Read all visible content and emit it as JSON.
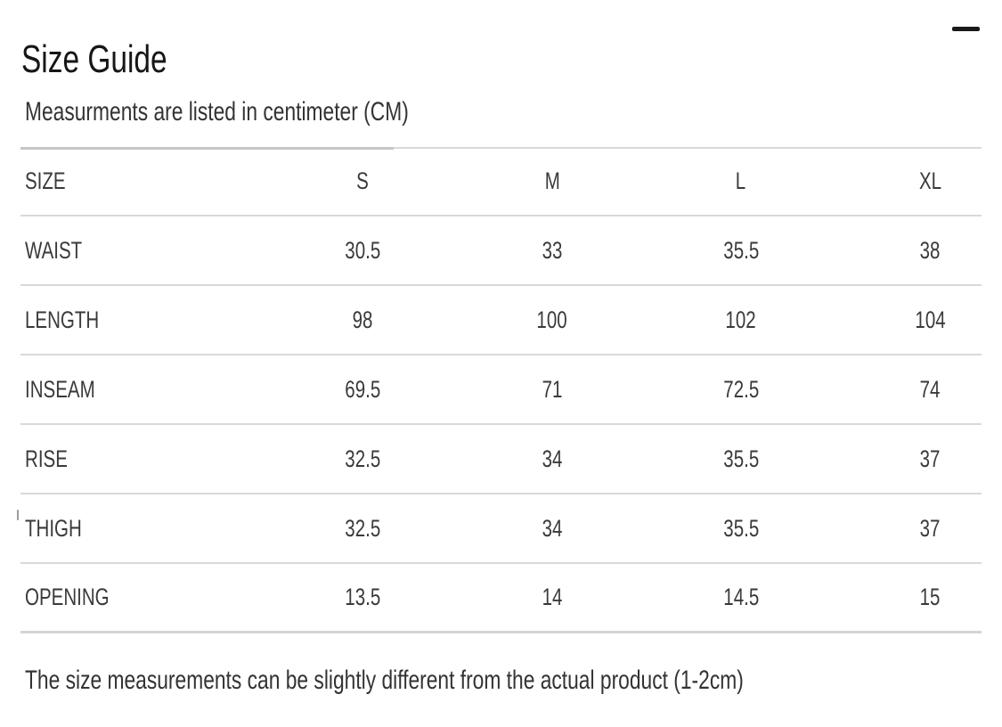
{
  "modal": {
    "title": "Size Guide"
  },
  "subtitle": "Measurments are listed in centimeter (CM)",
  "table": {
    "columns": [
      "SIZE",
      "S",
      "M",
      "L",
      "XL"
    ],
    "rows": [
      {
        "label": "WAIST",
        "values": [
          "30.5",
          "33",
          "35.5",
          "38"
        ]
      },
      {
        "label": "LENGTH",
        "values": [
          "98",
          "100",
          "102",
          "104"
        ]
      },
      {
        "label": "INSEAM",
        "values": [
          "69.5",
          "71",
          "72.5",
          "74"
        ]
      },
      {
        "label": "RISE",
        "values": [
          "32.5",
          "34",
          "35.5",
          "37"
        ]
      },
      {
        "label": "THIGH",
        "values": [
          "32.5",
          "34",
          "35.5",
          "37"
        ]
      },
      {
        "label": "OPENING",
        "values": [
          "13.5",
          "14",
          "14.5",
          "15"
        ]
      }
    ]
  },
  "footer_note": "The size measurements can be slightly different from the actual product (1-2cm)",
  "icons": {
    "collapse": "minus-icon"
  },
  "colors": {
    "title": "#161616",
    "text": "#333333",
    "cell": "#3a3a3a",
    "border": "#d9d9d9",
    "border-dark": "#c6c6c6"
  }
}
